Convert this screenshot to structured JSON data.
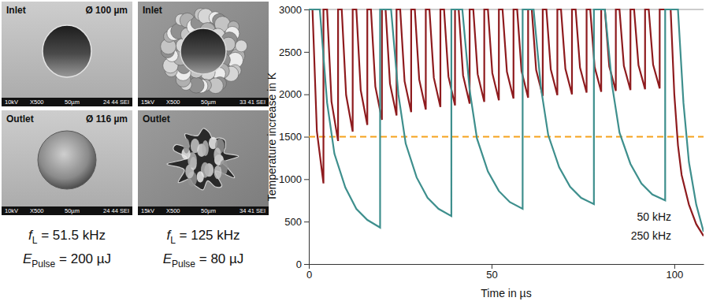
{
  "chart_data": {
    "type": "line",
    "y_label": "Temperature increase in K",
    "x_label": "Time in µs",
    "xlim": [
      0,
      108
    ],
    "xticks": [
      0,
      50,
      100
    ],
    "ylim": [
      0,
      3000
    ],
    "yticks": [
      0,
      500,
      1000,
      1500,
      2000,
      2500,
      3000
    ],
    "grid": false,
    "series": [
      {
        "name": "250 kHz",
        "color": "#8e1b1e",
        "x": [
          0,
          1,
          2.2,
          4,
          4,
          5,
          6.2,
          8,
          8,
          9,
          10.2,
          12,
          12,
          13,
          14.2,
          16,
          16,
          17,
          18.2,
          20,
          20,
          21,
          22.2,
          24,
          24,
          25,
          26.2,
          28,
          28,
          29,
          30.2,
          32,
          32,
          33,
          34.2,
          36,
          36,
          37,
          38.2,
          40,
          40,
          41,
          42.2,
          44,
          44,
          45,
          46.2,
          48,
          48,
          49,
          50.2,
          52,
          52,
          53,
          54.2,
          56,
          56,
          57,
          58.2,
          60,
          60,
          61,
          62.2,
          64,
          64,
          65,
          66.2,
          68,
          68,
          69,
          70.2,
          72,
          72,
          73,
          74.2,
          76,
          76,
          77,
          78.2,
          80,
          80,
          81,
          82.2,
          84,
          84,
          85,
          86.2,
          88,
          88,
          89,
          90.2,
          92,
          92,
          93,
          94.2,
          96,
          96,
          99,
          100,
          101,
          102,
          104,
          106,
          108
        ],
        "values": [
          3000,
          3000,
          1565,
          950,
          3000,
          3000,
          1915,
          1450,
          3000,
          3000,
          1992,
          1560,
          3000,
          3000,
          2048,
          1640,
          3000,
          3000,
          2090,
          1700,
          3000,
          3000,
          2125,
          1750,
          3000,
          3000,
          2153,
          1790,
          3000,
          3000,
          2174,
          1820,
          3000,
          3000,
          2195,
          1850,
          3000,
          3000,
          2209,
          1870,
          3000,
          3000,
          2223,
          1890,
          3000,
          3000,
          2237,
          1910,
          3000,
          3000,
          2251,
          1930,
          3000,
          3000,
          2265,
          1950,
          3000,
          3000,
          2272,
          1960,
          3000,
          3000,
          2286,
          1980,
          3000,
          3000,
          2293,
          1990,
          3000,
          3000,
          2300,
          2000,
          3000,
          3000,
          2314,
          2020,
          3000,
          3000,
          2321,
          2030,
          3000,
          3000,
          2328,
          2040,
          3000,
          3000,
          2335,
          2050,
          3000,
          3000,
          2342,
          2060,
          3000,
          3000,
          2349,
          2070,
          3000,
          3000,
          2000,
          1400,
          1050,
          700,
          470,
          330
        ]
      },
      {
        "name": "50 kHz",
        "color": "#3e8f8d",
        "x": [
          0,
          3,
          5,
          7,
          10,
          13,
          16,
          19.5,
          19.5,
          22.5,
          24.5,
          26.5,
          29.5,
          32.5,
          35.5,
          39,
          39,
          42,
          44,
          46,
          49,
          52,
          55,
          58.5,
          58.5,
          61.5,
          63.5,
          65.5,
          68.5,
          71.5,
          74.5,
          78,
          78,
          81,
          83,
          85,
          88,
          91,
          94,
          97.5,
          97.5,
          101,
          102.5,
          104,
          106,
          108
        ],
        "values": [
          3000,
          3000,
          1900,
          1300,
          900,
          650,
          520,
          430,
          3000,
          3000,
          2000,
          1420,
          1020,
          780,
          650,
          565,
          3000,
          3000,
          2050,
          1480,
          1090,
          860,
          730,
          650,
          3000,
          3000,
          2080,
          1520,
          1140,
          910,
          780,
          705,
          3000,
          3000,
          2100,
          1550,
          1180,
          950,
          820,
          750,
          3000,
          3000,
          1900,
          1200,
          700,
          380
        ]
      }
    ],
    "threshold": {
      "value": 1500,
      "color": "#f5a21c",
      "line_style": "dashed"
    }
  },
  "micrographs": [
    {
      "label": "Inlet",
      "diameter": "Ø 100 µm",
      "info": [
        "10kV",
        "X500",
        "50µm",
        "24 44 SEI"
      ]
    },
    {
      "label": "Outlet",
      "diameter": "Ø 116 µm",
      "info": [
        "10kV",
        "X500",
        "50µm",
        "24 44 SEI"
      ]
    },
    {
      "label": "Inlet",
      "info": [
        "15kV",
        "X500",
        "50µm",
        "33 41 SEI"
      ]
    },
    {
      "label": "Outlet",
      "info": [
        "15kV",
        "X500",
        "50µm",
        "34 41 SEI"
      ]
    }
  ],
  "captions": [
    {
      "frequency": {
        "symbol": "f",
        "subscript": "L",
        "rest": " = 51.5 kHz"
      },
      "energy": {
        "symbol": "E",
        "subscript": "Pulse",
        "rest": " = 200 µJ"
      }
    },
    {
      "frequency": {
        "symbol": "f",
        "subscript": "L",
        "rest": " = 125 kHz"
      },
      "energy": {
        "symbol": "E",
        "subscript": "Pulse",
        "rest": " = 80 µJ"
      }
    }
  ]
}
